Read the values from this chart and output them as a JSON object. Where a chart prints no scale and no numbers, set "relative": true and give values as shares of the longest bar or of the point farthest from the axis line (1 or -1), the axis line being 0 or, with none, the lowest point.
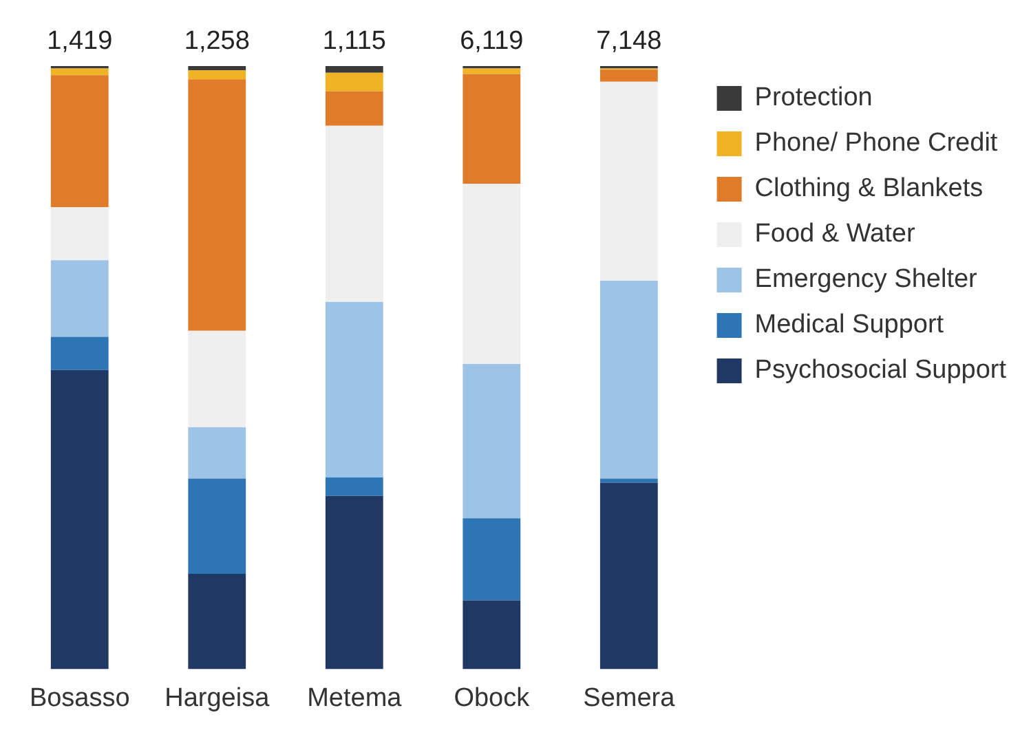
{
  "chart_data": {
    "type": "bar",
    "stacked": true,
    "relative": true,
    "categories": [
      "Bosasso",
      "Hargeisa",
      "Metema",
      "Obock",
      "Semera"
    ],
    "series": [
      {
        "name": "Psychosocial Support",
        "color": "#1f3864",
        "values": [
          0.496,
          0.158,
          0.287,
          0.114,
          0.309
        ]
      },
      {
        "name": "Medical Support",
        "color": "#2e75b6",
        "values": [
          0.055,
          0.158,
          0.031,
          0.136,
          0.007
        ]
      },
      {
        "name": "Emergency Shelter",
        "color": "#9dc3e6",
        "values": [
          0.127,
          0.085,
          0.291,
          0.256,
          0.328
        ]
      },
      {
        "name": "Food & Water",
        "color": "#efefef",
        "values": [
          0.088,
          0.16,
          0.292,
          0.299,
          0.33
        ]
      },
      {
        "name": "Clothing & Blankets",
        "color": "#e07b29",
        "values": [
          0.219,
          0.417,
          0.057,
          0.182,
          0.02
        ]
      },
      {
        "name": "Phone/ Phone Credit",
        "color": "#f0b323",
        "values": [
          0.011,
          0.015,
          0.031,
          0.009,
          0.002
        ]
      },
      {
        "name": "Protection",
        "color": "#3a3a3a",
        "values": [
          0.004,
          0.007,
          0.011,
          0.004,
          0.004
        ]
      }
    ],
    "annotations": [
      "1,419",
      "1,258",
      "1,115",
      "6,119",
      "7,148"
    ],
    "legend": "right",
    "grid": false
  }
}
